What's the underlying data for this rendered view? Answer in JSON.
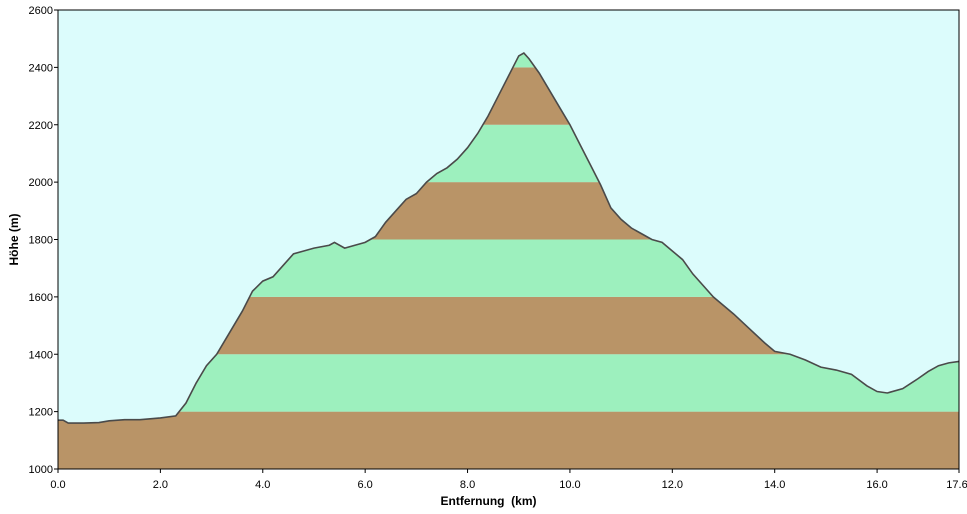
{
  "chart_data": {
    "type": "area",
    "title": "",
    "xlabel": "Entfernung  (km)",
    "ylabel": "Höhe (m)",
    "xlim": [
      0,
      17.6
    ],
    "ylim": [
      1000,
      2600
    ],
    "x_ticks": [
      "0.0",
      "2.0",
      "4.0",
      "6.0",
      "8.0",
      "10.0",
      "12.0",
      "14.0",
      "16.0",
      "17.6"
    ],
    "y_ticks": [
      "1000",
      "1200",
      "1400",
      "1600",
      "1800",
      "2000",
      "2200",
      "2400",
      "2600"
    ],
    "band_step_m": 200,
    "colors": {
      "sky": "#dcfcfc",
      "band_brown": "#b99467",
      "band_green": "#9df0be",
      "profile_line": "#4a4a4a",
      "frame": "#000000"
    },
    "series": [
      {
        "x": [
          0.0,
          0.1,
          0.2,
          0.5,
          0.8,
          1.0,
          1.3,
          1.6,
          2.0,
          2.3,
          2.5,
          2.7,
          2.9,
          3.1,
          3.3,
          3.6,
          3.8,
          4.0,
          4.2,
          4.4,
          4.6,
          4.8,
          5.0,
          5.3,
          5.4,
          5.6,
          5.8,
          6.0,
          6.2,
          6.4,
          6.6,
          6.8,
          7.0,
          7.2,
          7.4,
          7.6,
          7.8,
          8.0,
          8.2,
          8.4,
          8.6,
          8.8,
          9.0,
          9.1,
          9.2,
          9.4,
          9.6,
          9.8,
          10.0,
          10.2,
          10.4,
          10.6,
          10.8,
          11.0,
          11.2,
          11.4,
          11.6,
          11.8,
          12.0,
          12.2,
          12.4,
          12.6,
          12.8,
          13.0,
          13.2,
          13.5,
          13.8,
          14.0,
          14.3,
          14.6,
          14.9,
          15.2,
          15.5,
          15.8,
          16.0,
          16.2,
          16.5,
          16.8,
          17.0,
          17.2,
          17.4,
          17.6
        ],
        "y": [
          1170,
          1170,
          1160,
          1160,
          1162,
          1168,
          1172,
          1172,
          1178,
          1185,
          1230,
          1300,
          1360,
          1400,
          1460,
          1550,
          1620,
          1655,
          1670,
          1710,
          1750,
          1760,
          1770,
          1780,
          1790,
          1770,
          1780,
          1790,
          1810,
          1860,
          1900,
          1940,
          1960,
          2000,
          2030,
          2050,
          2080,
          2120,
          2170,
          2230,
          2300,
          2370,
          2440,
          2450,
          2430,
          2380,
          2320,
          2260,
          2200,
          2130,
          2060,
          1990,
          1910,
          1870,
          1840,
          1820,
          1800,
          1790,
          1760,
          1730,
          1680,
          1640,
          1600,
          1570,
          1540,
          1490,
          1440,
          1410,
          1400,
          1380,
          1355,
          1345,
          1330,
          1290,
          1270,
          1265,
          1280,
          1315,
          1340,
          1360,
          1370,
          1375
        ]
      }
    ]
  }
}
